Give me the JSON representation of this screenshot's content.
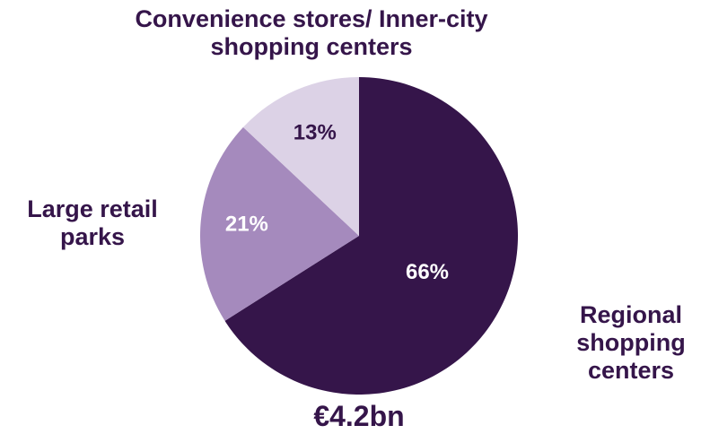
{
  "chart_data": {
    "type": "pie",
    "categories": [
      "Regional shopping centers",
      "Large retail parks",
      "Convenience stores/ Inner-city shopping centers"
    ],
    "values": [
      66,
      21,
      13
    ],
    "value_labels": [
      "66%",
      "21%",
      "13%"
    ],
    "colors": [
      "#35154a",
      "#a58abd",
      "#dcd2e6"
    ],
    "label_colors": [
      "#ffffff",
      "#ffffff",
      "#35154a"
    ],
    "total": "€4.2bn"
  }
}
